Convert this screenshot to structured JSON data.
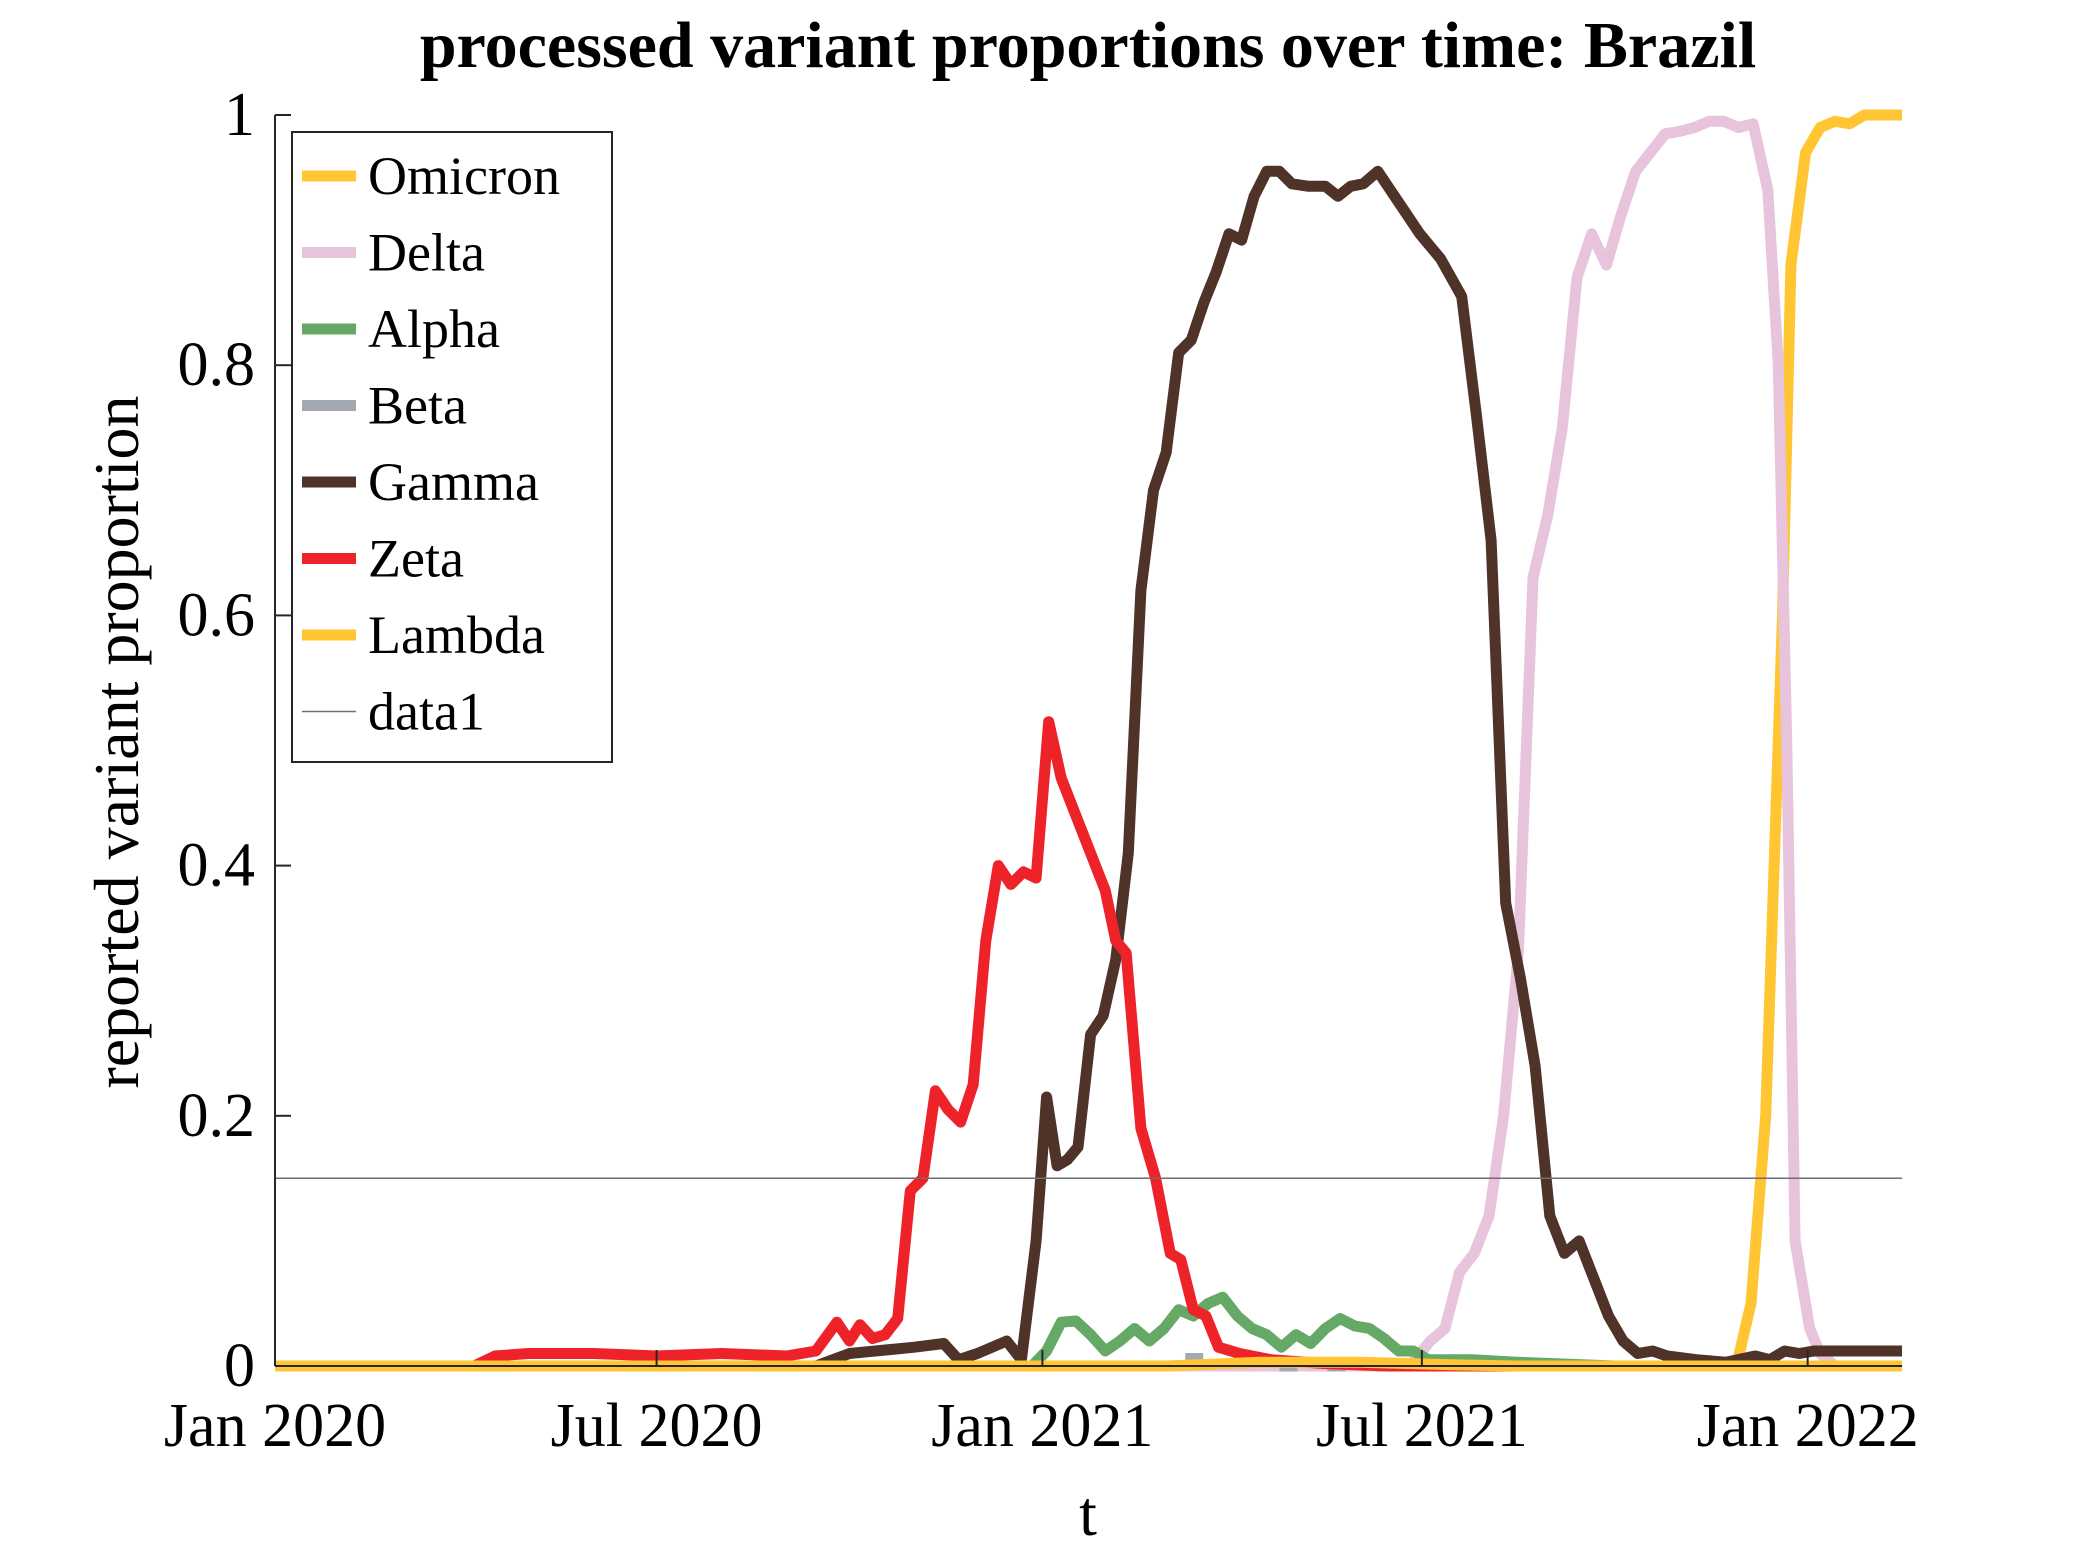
{
  "chart_data": {
    "type": "line",
    "title": "processed variant proportions over time: Brazil",
    "xlabel": "t",
    "ylabel": "reported variant proportion",
    "xlim": [
      "2020-01-01",
      "2022-02-15"
    ],
    "ylim": [
      0,
      1
    ],
    "xticks": [
      {
        "date": "2020-01-01",
        "label": "Jan 2020"
      },
      {
        "date": "2020-07-01",
        "label": "Jul 2020"
      },
      {
        "date": "2021-01-01",
        "label": "Jan 2021"
      },
      {
        "date": "2021-07-01",
        "label": "Jul 2021"
      },
      {
        "date": "2022-01-01",
        "label": "Jan 2022"
      }
    ],
    "yticks": [
      {
        "value": 0,
        "label": "0"
      },
      {
        "value": 0.2,
        "label": "0.2"
      },
      {
        "value": 0.4,
        "label": "0.4"
      },
      {
        "value": 0.6,
        "label": "0.6"
      },
      {
        "value": 0.8,
        "label": "0.8"
      },
      {
        "value": 1,
        "label": "1"
      }
    ],
    "grid": false,
    "legend_position": "top-left",
    "series": [
      {
        "name": "Omicron",
        "color": "#FFC533",
        "width": 11,
        "dash": "",
        "points": [
          [
            "2020-01-01",
            0
          ],
          [
            "2021-11-28",
            0
          ],
          [
            "2021-12-05",
            0.05
          ],
          [
            "2021-12-12",
            0.2
          ],
          [
            "2021-12-16",
            0.4
          ],
          [
            "2021-12-20",
            0.6
          ],
          [
            "2021-12-24",
            0.88
          ],
          [
            "2021-12-31",
            0.97
          ],
          [
            "2022-01-07",
            0.99
          ],
          [
            "2022-01-14",
            0.995
          ],
          [
            "2022-01-21",
            0.993
          ],
          [
            "2022-01-28",
            1
          ],
          [
            "2022-02-15",
            1
          ]
        ]
      },
      {
        "name": "Delta",
        "color": "#E8C4DC",
        "width": 11,
        "dash": "",
        "points": [
          [
            "2020-01-01",
            0
          ],
          [
            "2021-06-25",
            0
          ],
          [
            "2021-07-05",
            0.02
          ],
          [
            "2021-07-12",
            0.03
          ],
          [
            "2021-07-19",
            0.075
          ],
          [
            "2021-07-26",
            0.09
          ],
          [
            "2021-08-02",
            0.12
          ],
          [
            "2021-08-09",
            0.2
          ],
          [
            "2021-08-16",
            0.33
          ],
          [
            "2021-08-23",
            0.63
          ],
          [
            "2021-08-30",
            0.68
          ],
          [
            "2021-09-06",
            0.75
          ],
          [
            "2021-09-13",
            0.87
          ],
          [
            "2021-09-20",
            0.905
          ],
          [
            "2021-09-27",
            0.88
          ],
          [
            "2021-10-04",
            0.92
          ],
          [
            "2021-10-11",
            0.955
          ],
          [
            "2021-10-18",
            0.97
          ],
          [
            "2021-10-25",
            0.985
          ],
          [
            "2021-11-01",
            0.987
          ],
          [
            "2021-11-08",
            0.99
          ],
          [
            "2021-11-15",
            0.995
          ],
          [
            "2021-11-22",
            0.995
          ],
          [
            "2021-11-29",
            0.99
          ],
          [
            "2021-12-06",
            0.993
          ],
          [
            "2021-12-13",
            0.94
          ],
          [
            "2021-12-18",
            0.8
          ],
          [
            "2021-12-22",
            0.5
          ],
          [
            "2021-12-26",
            0.1
          ],
          [
            "2022-01-02",
            0.03
          ],
          [
            "2022-01-07",
            0.01
          ],
          [
            "2022-01-14",
            0
          ],
          [
            "2022-02-15",
            0
          ]
        ]
      },
      {
        "name": "Alpha",
        "color": "#66A866",
        "width": 11,
        "dash": "",
        "points": [
          [
            "2020-01-01",
            0
          ],
          [
            "2020-12-27",
            0
          ],
          [
            "2021-01-03",
            0.012
          ],
          [
            "2021-01-10",
            0.035
          ],
          [
            "2021-01-17",
            0.036
          ],
          [
            "2021-01-24",
            0.025
          ],
          [
            "2021-01-31",
            0.012
          ],
          [
            "2021-02-07",
            0.02
          ],
          [
            "2021-02-14",
            0.03
          ],
          [
            "2021-02-21",
            0.02
          ],
          [
            "2021-02-28",
            0.03
          ],
          [
            "2021-03-07",
            0.045
          ],
          [
            "2021-03-14",
            0.04
          ],
          [
            "2021-03-21",
            0.05
          ],
          [
            "2021-03-28",
            0.055
          ],
          [
            "2021-04-04",
            0.04
          ],
          [
            "2021-04-11",
            0.03
          ],
          [
            "2021-04-18",
            0.025
          ],
          [
            "2021-04-25",
            0.015
          ],
          [
            "2021-05-02",
            0.025
          ],
          [
            "2021-05-09",
            0.018
          ],
          [
            "2021-05-16",
            0.03
          ],
          [
            "2021-05-23",
            0.038
          ],
          [
            "2021-05-30",
            0.032
          ],
          [
            "2021-06-06",
            0.03
          ],
          [
            "2021-06-13",
            0.022
          ],
          [
            "2021-06-20",
            0.012
          ],
          [
            "2021-06-27",
            0.012
          ],
          [
            "2021-07-04",
            0.005
          ],
          [
            "2021-07-25",
            0.005
          ],
          [
            "2021-08-15",
            0.003
          ],
          [
            "2021-10-01",
            0
          ],
          [
            "2022-02-15",
            0
          ]
        ]
      },
      {
        "name": "Beta",
        "color": "#A2A9B0",
        "width": 11,
        "dash": "18 30",
        "points": [
          [
            "2020-01-01",
            0
          ],
          [
            "2021-03-01",
            0
          ],
          [
            "2021-03-08",
            0.006
          ],
          [
            "2021-04-12",
            0.006
          ],
          [
            "2021-04-19",
            0
          ],
          [
            "2022-02-15",
            0
          ]
        ]
      },
      {
        "name": "Gamma",
        "color": "#4F3328",
        "width": 11,
        "dash": "",
        "points": [
          [
            "2020-01-01",
            0
          ],
          [
            "2020-09-15",
            0
          ],
          [
            "2020-10-01",
            0.01
          ],
          [
            "2020-11-01",
            0.015
          ],
          [
            "2020-11-15",
            0.018
          ],
          [
            "2020-11-22",
            0.005
          ],
          [
            "2020-12-01",
            0.01
          ],
          [
            "2020-12-15",
            0.02
          ],
          [
            "2020-12-22",
            0.005
          ],
          [
            "2020-12-29",
            0.1
          ],
          [
            "2021-01-03",
            0.215
          ],
          [
            "2021-01-08",
            0.16
          ],
          [
            "2021-01-13",
            0.165
          ],
          [
            "2021-01-18",
            0.175
          ],
          [
            "2021-01-24",
            0.265
          ],
          [
            "2021-01-30",
            0.28
          ],
          [
            "2021-02-05",
            0.325
          ],
          [
            "2021-02-11",
            0.41
          ],
          [
            "2021-02-17",
            0.62
          ],
          [
            "2021-02-23",
            0.7
          ],
          [
            "2021-03-01",
            0.73
          ],
          [
            "2021-03-07",
            0.81
          ],
          [
            "2021-03-13",
            0.82
          ],
          [
            "2021-03-19",
            0.85
          ],
          [
            "2021-03-25",
            0.875
          ],
          [
            "2021-03-31",
            0.905
          ],
          [
            "2021-04-06",
            0.9
          ],
          [
            "2021-04-12",
            0.935
          ],
          [
            "2021-04-18",
            0.955
          ],
          [
            "2021-04-24",
            0.955
          ],
          [
            "2021-04-30",
            0.945
          ],
          [
            "2021-05-08",
            0.943
          ],
          [
            "2021-05-16",
            0.943
          ],
          [
            "2021-05-22",
            0.935
          ],
          [
            "2021-05-28",
            0.943
          ],
          [
            "2021-06-03",
            0.945
          ],
          [
            "2021-06-10",
            0.955
          ],
          [
            "2021-06-20",
            0.93
          ],
          [
            "2021-06-30",
            0.905
          ],
          [
            "2021-07-10",
            0.885
          ],
          [
            "2021-07-20",
            0.855
          ],
          [
            "2021-07-27",
            0.76
          ],
          [
            "2021-08-03",
            0.66
          ],
          [
            "2021-08-10",
            0.37
          ],
          [
            "2021-08-17",
            0.31
          ],
          [
            "2021-08-24",
            0.24
          ],
          [
            "2021-08-31",
            0.12
          ],
          [
            "2021-09-07",
            0.09
          ],
          [
            "2021-09-14",
            0.1
          ],
          [
            "2021-09-21",
            0.07
          ],
          [
            "2021-09-28",
            0.04
          ],
          [
            "2021-10-05",
            0.02
          ],
          [
            "2021-10-12",
            0.01
          ],
          [
            "2021-10-19",
            0.012
          ],
          [
            "2021-10-26",
            0.008
          ],
          [
            "2021-11-09",
            0.005
          ],
          [
            "2021-11-23",
            0.003
          ],
          [
            "2021-12-07",
            0.008
          ],
          [
            "2021-12-14",
            0.005
          ],
          [
            "2021-12-21",
            0.012
          ],
          [
            "2021-12-28",
            0.01
          ],
          [
            "2022-01-04",
            0.012
          ],
          [
            "2022-02-15",
            0.012
          ]
        ]
      },
      {
        "name": "Zeta",
        "color": "#EE2229",
        "width": 11,
        "dash": "",
        "points": [
          [
            "2020-01-01",
            0
          ],
          [
            "2020-04-05",
            0
          ],
          [
            "2020-04-15",
            0.008
          ],
          [
            "2020-05-01",
            0.01
          ],
          [
            "2020-06-01",
            0.01
          ],
          [
            "2020-07-01",
            0.008
          ],
          [
            "2020-08-01",
            0.01
          ],
          [
            "2020-09-01",
            0.008
          ],
          [
            "2020-09-15",
            0.012
          ],
          [
            "2020-09-25",
            0.035
          ],
          [
            "2020-10-01",
            0.02
          ],
          [
            "2020-10-06",
            0.033
          ],
          [
            "2020-10-12",
            0.022
          ],
          [
            "2020-10-18",
            0.025
          ],
          [
            "2020-10-24",
            0.038
          ],
          [
            "2020-10-30",
            0.14
          ],
          [
            "2020-11-05",
            0.15
          ],
          [
            "2020-11-11",
            0.22
          ],
          [
            "2020-11-17",
            0.205
          ],
          [
            "2020-11-23",
            0.195
          ],
          [
            "2020-11-29",
            0.225
          ],
          [
            "2020-12-05",
            0.34
          ],
          [
            "2020-12-11",
            0.4
          ],
          [
            "2020-12-17",
            0.385
          ],
          [
            "2020-12-23",
            0.395
          ],
          [
            "2020-12-29",
            0.39
          ],
          [
            "2021-01-04",
            0.515
          ],
          [
            "2021-01-10",
            0.47
          ],
          [
            "2021-01-17",
            0.44
          ],
          [
            "2021-01-24",
            0.41
          ],
          [
            "2021-01-31",
            0.38
          ],
          [
            "2021-02-05",
            0.34
          ],
          [
            "2021-02-10",
            0.33
          ],
          [
            "2021-02-17",
            0.19
          ],
          [
            "2021-02-24",
            0.15
          ],
          [
            "2021-03-03",
            0.09
          ],
          [
            "2021-03-08",
            0.085
          ],
          [
            "2021-03-14",
            0.045
          ],
          [
            "2021-03-20",
            0.04
          ],
          [
            "2021-03-26",
            0.015
          ],
          [
            "2021-04-05",
            0.01
          ],
          [
            "2021-04-20",
            0.005
          ],
          [
            "2021-05-15",
            0.002
          ],
          [
            "2021-06-15",
            0
          ],
          [
            "2022-02-15",
            0
          ]
        ]
      },
      {
        "name": "Lambda",
        "color": "#FFC533",
        "width": 11,
        "dash": "",
        "points": [
          [
            "2020-01-01",
            0
          ],
          [
            "2021-03-01",
            0
          ],
          [
            "2021-04-15",
            0.003
          ],
          [
            "2021-06-01",
            0.003
          ],
          [
            "2021-07-15",
            0.001
          ],
          [
            "2021-08-15",
            0
          ],
          [
            "2022-02-15",
            0
          ]
        ]
      },
      {
        "name": "data1",
        "color": "#6E6E6E",
        "width": 1.5,
        "dash": "",
        "points": [
          [
            "2020-01-01",
            0.15
          ],
          [
            "2022-02-15",
            0.15
          ]
        ]
      }
    ]
  }
}
